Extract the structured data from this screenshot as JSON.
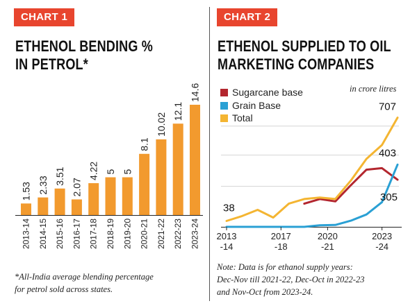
{
  "chart_data": [
    {
      "type": "bar",
      "tag": "CHART 1",
      "title_lines": [
        "ETHENOL BENDING %",
        "IN PETROL*"
      ],
      "categories": [
        "2013-14",
        "2014-15",
        "2015-16",
        "2016-17",
        "2017-18",
        "2018-19",
        "2019-20",
        "2020-21",
        "2021-22",
        "2022-23",
        "2023-24"
      ],
      "values": [
        1.53,
        2.33,
        3.51,
        2.07,
        4.22,
        5,
        5,
        8.1,
        10.02,
        12.1,
        14.6
      ],
      "value_labels": [
        "1.53",
        "2.33",
        "3.51",
        "2.07",
        "4.22",
        "5",
        "5",
        "8.1",
        "10.02",
        "12.1",
        "14.6"
      ],
      "ylim": [
        0,
        14.6
      ],
      "bar_color": "#f29a2e",
      "footnote_lines": [
        "*All-India average blending percentage",
        "for petrol sold across states."
      ]
    },
    {
      "type": "line",
      "tag": "CHART 2",
      "title_lines": [
        "ETHENOL SUPPLIED TO OIL",
        "MARKETING COMPANIES"
      ],
      "unit": "in crore litres",
      "x": [
        2013,
        2014,
        2015,
        2016,
        2017,
        2018,
        2019,
        2020,
        2021,
        2022,
        2023,
        2024
      ],
      "xlim": [
        2013,
        2024
      ],
      "ylim": [
        0,
        750
      ],
      "xtick_labels": [
        {
          "x": 2013,
          "line1": "2013",
          "line2": "-14"
        },
        {
          "x": 2016.5,
          "line1": "2017",
          "line2": "-18"
        },
        {
          "x": 2019.5,
          "line1": "2020",
          "line2": "-21"
        },
        {
          "x": 2023,
          "line1": "2023",
          "line2": "-24"
        }
      ],
      "series": [
        {
          "name": "Sugarcane base",
          "color": "#b3262e",
          "values": [
            null,
            null,
            null,
            null,
            null,
            150,
            180,
            165,
            270,
            370,
            380,
            305
          ]
        },
        {
          "name": "Grain Base",
          "color": "#2aa0d4",
          "values": [
            0,
            0,
            0,
            0,
            0,
            0,
            10,
            12,
            40,
            80,
            160,
            403
          ]
        },
        {
          "name": "Total",
          "color": "#f4b532",
          "values": [
            38,
            70,
            110,
            60,
            150,
            180,
            190,
            180,
            300,
            440,
            530,
            707
          ]
        }
      ],
      "annotations": [
        {
          "text": "38",
          "x": 2013,
          "y": 38
        },
        {
          "text": "707",
          "x": 2024,
          "y": 707
        },
        {
          "text": "403",
          "x": 2024,
          "y": 403
        },
        {
          "text": "305",
          "x": 2024,
          "y": 305
        }
      ],
      "note_lines": [
        "Note: Data is for ethanol supply years:",
        "Dec-Nov till 2021-22, Dec-Oct in 2022-23",
        "and Nov-Oct from 2023-24."
      ]
    }
  ]
}
